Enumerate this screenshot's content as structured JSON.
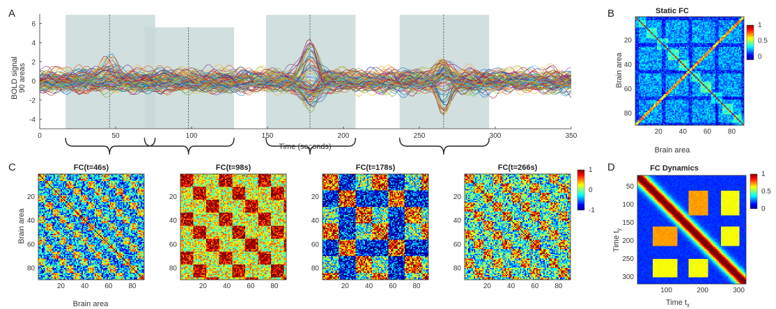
{
  "panels": {
    "A": "A",
    "B": "B",
    "C": "C",
    "D": "D"
  },
  "chart_data": [
    {
      "id": "A",
      "type": "line",
      "title": "",
      "xlabel": "Time (seconds)",
      "ylabel_line1": "BOLD signal",
      "ylabel_line2": "90 areas",
      "xlim": [
        0,
        350
      ],
      "ylim": [
        -5,
        7
      ],
      "xticks": [
        0,
        50,
        100,
        150,
        200,
        250,
        300,
        350
      ],
      "yticks": [
        -4,
        -2,
        0,
        2,
        4,
        6
      ],
      "series_count": 90,
      "highlight_windows": [
        {
          "start": 17,
          "end": 76,
          "center": 46
        },
        {
          "start": 69,
          "end": 128,
          "center": 98
        },
        {
          "start": 149,
          "end": 208,
          "center": 178
        },
        {
          "start": 237,
          "end": 296,
          "center": 266
        }
      ],
      "window_color": "#c9d9d9",
      "colors": [
        "#0072bd",
        "#d95319",
        "#edb120",
        "#7e2f8e",
        "#77ac30",
        "#4dbeee",
        "#a2142f"
      ]
    },
    {
      "id": "B",
      "type": "heatmap",
      "title": "Static FC",
      "xlabel": "Brain area",
      "ylabel": "Brain area",
      "size": 90,
      "xticks": [
        20,
        40,
        60,
        80
      ],
      "yticks": [
        20,
        40,
        60,
        80
      ],
      "colorbar": {
        "ticks": [
          "1",
          "0.5",
          "0"
        ],
        "values": [
          1,
          0.5,
          0
        ],
        "range": [
          -0.1,
          1
        ]
      }
    },
    {
      "id": "C",
      "type": "heatmap",
      "xlabel": "Brain area",
      "ylabel": "Brain area",
      "size": 90,
      "xticks": [
        20,
        40,
        60,
        80
      ],
      "yticks": [
        20,
        40,
        60,
        80
      ],
      "matrices": [
        {
          "title": "FC(t=46s)",
          "t": 46
        },
        {
          "title": "FC(t=98s)",
          "t": 98
        },
        {
          "title": "FC(t=178s)",
          "t": 178
        },
        {
          "title": "FC(t=266s)",
          "t": 266
        }
      ],
      "colorbar": {
        "ticks": [
          "1",
          "0",
          "-1"
        ],
        "values": [
          1,
          0,
          -1
        ],
        "range": [
          -1,
          1
        ]
      }
    },
    {
      "id": "D",
      "type": "heatmap",
      "title": "FC Dynamics",
      "xlabel": "Time t",
      "xlabel_sub": "x",
      "ylabel": "Time t",
      "ylabel_sub": "y",
      "xticks": [
        100,
        200,
        300
      ],
      "yticks": [
        50,
        100,
        150,
        200,
        250,
        300
      ],
      "range": [
        20,
        320
      ],
      "colorbar": {
        "ticks": [
          "1",
          "0.5",
          "0"
        ],
        "values": [
          1,
          0.5,
          0
        ],
        "range": [
          0,
          1
        ]
      }
    }
  ]
}
